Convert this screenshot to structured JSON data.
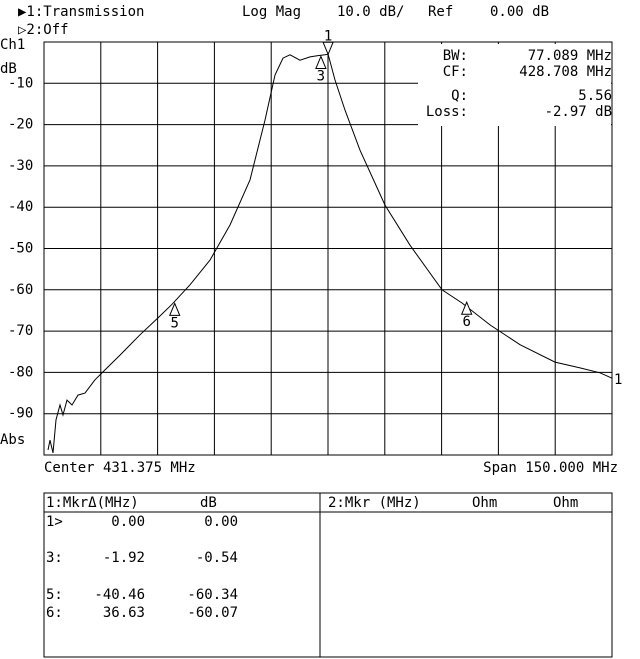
{
  "header": {
    "channel1": "▶1:Transmission",
    "format": "Log Mag",
    "scale": "10.0 dB/",
    "ref_label": "Ref",
    "ref_value": "0.00 dB",
    "channel2": "▷2:Off"
  },
  "chart_data": {
    "type": "line",
    "channel": "Ch1",
    "unit": "dB",
    "bottom_label": "Abs",
    "trace_label": "1",
    "xlim": [
      356.375,
      506.375
    ],
    "ylim": [
      -100,
      0
    ],
    "yticks": [
      -10,
      -20,
      -30,
      -40,
      -50,
      -60,
      -70,
      -80,
      -90
    ],
    "grid": true,
    "color": "#000000",
    "x": [
      357.43,
      357.96,
      358.75,
      359.54,
      360.6,
      361.39,
      362.45,
      363.77,
      365.35,
      367.2,
      369.84,
      372.48,
      376.45,
      381.73,
      386.48,
      390.18,
      394.93,
      400.21,
      405.49,
      410.77,
      414.73,
      417.37,
      419.49,
      421.33,
      423.98,
      426.62,
      428.73,
      430.58,
      431.4,
      433.22,
      435.86,
      439.82,
      446.43,
      453.03,
      461.48,
      466.76,
      474.15,
      482.08,
      491.32,
      497.92,
      503.2,
      506.37
    ],
    "values": [
      -98.8,
      -96.4,
      -99.5,
      -91.5,
      -87.9,
      -90.3,
      -86.7,
      -87.9,
      -85.5,
      -85.0,
      -81.8,
      -79.4,
      -75.8,
      -70.9,
      -66.8,
      -63.5,
      -58.8,
      -52.8,
      -44.3,
      -33.4,
      -18.9,
      -8.0,
      -3.9,
      -3.1,
      -4.4,
      -3.6,
      -3.3,
      -3.1,
      -2.97,
      -9.2,
      -16.5,
      -26.2,
      -39.5,
      -49.2,
      -60.0,
      -63.2,
      -68.5,
      -73.3,
      -77.5,
      -78.9,
      -80.1,
      -81.4
    ],
    "markers": [
      {
        "label": "1",
        "x": 431.4,
        "y": -2.97
      },
      {
        "label": "3",
        "x": 429.5,
        "y": -3.5
      },
      {
        "label": "5",
        "x": 390.9,
        "y": -63.3
      },
      {
        "label": "6",
        "x": 468.0,
        "y": -63.0
      }
    ],
    "info": [
      {
        "label": "BW:",
        "value": "77.089 MHz"
      },
      {
        "label": "CF:",
        "value": "428.708 MHz"
      },
      {
        "label": "Q:",
        "value": "5.56"
      },
      {
        "label": "Loss:",
        "value": "-2.97 dB"
      }
    ]
  },
  "footer": {
    "center": "Center 431.375 MHz",
    "span": "Span 150.000 MHz"
  },
  "left_table": {
    "header": [
      "1:MkrΔ(MHz)",
      "dB"
    ],
    "rows": [
      [
        "1>",
        "0.00",
        "0.00"
      ],
      [
        "3:",
        "-1.92",
        "-0.54"
      ],
      [
        "5:",
        "-40.46",
        "-60.34"
      ],
      [
        "6:",
        "36.63",
        "-60.07"
      ]
    ]
  },
  "right_table": {
    "header": [
      "2:Mkr (MHz)",
      "Ohm",
      "Ohm"
    ]
  }
}
